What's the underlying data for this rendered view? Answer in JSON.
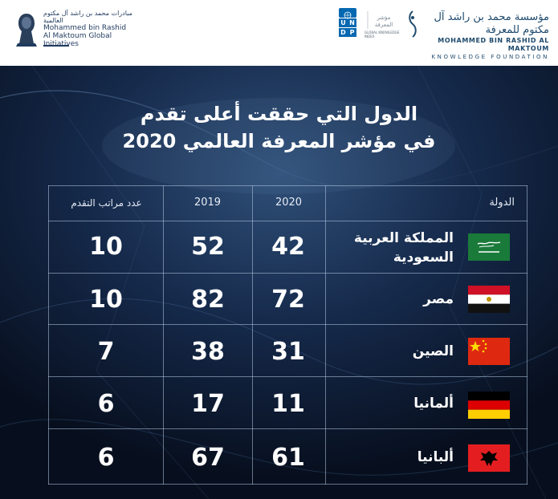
{
  "header": {
    "left_logo": {
      "arabic": "مبادرات محمد بن راشد آل مكتوم العالمية",
      "english_line1": "Mohammed bin Rashid",
      "english_line2": "Al Maktoum Global Initiatives",
      "icon": "sheikh-portrait-emblem"
    },
    "right_logo": {
      "undp_letters": [
        "U",
        "N",
        "D",
        "P"
      ],
      "gki_text": "GLOBAL KNOWLEDGE INDEX",
      "arabic": "مؤسسة محمد بن راشد آل مكتوم للمعرفة",
      "english_line1": "MOHAMMED BIN RASHID AL MAKTOUM",
      "english_line2": "KNOWLEDGE FOUNDATION"
    }
  },
  "title": {
    "line1": "الدول التي حققت أعلى تقدم",
    "line2": "في مؤشر المعرفة العالمي 2020"
  },
  "table": {
    "headers": {
      "country": "الدولة",
      "y2020": "2020",
      "y2019": "2019",
      "progress": "عدد مراتب التقدم"
    },
    "rows": [
      {
        "country": "المملكة العربية السعودية",
        "country_line1": "المملكة العربية",
        "country_line2": "السعودية",
        "flag": "saudi-arabia-flag",
        "y2020": "42",
        "y2019": "52",
        "progress": "10"
      },
      {
        "country": "مصر",
        "flag": "egypt-flag",
        "y2020": "72",
        "y2019": "82",
        "progress": "10"
      },
      {
        "country": "الصين",
        "flag": "china-flag",
        "y2020": "31",
        "y2019": "38",
        "progress": "7"
      },
      {
        "country": "ألمانيا",
        "flag": "germany-flag",
        "y2020": "11",
        "y2019": "17",
        "progress": "6"
      },
      {
        "country": "ألبانيا",
        "flag": "albania-flag",
        "y2020": "61",
        "y2019": "67",
        "progress": "6"
      }
    ]
  },
  "colors": {
    "background": "#0a1528",
    "text": "#ffffff",
    "grid": "#b4c8e1",
    "header_blue": "#1e4a6e",
    "undp_blue": "#0468b1"
  }
}
